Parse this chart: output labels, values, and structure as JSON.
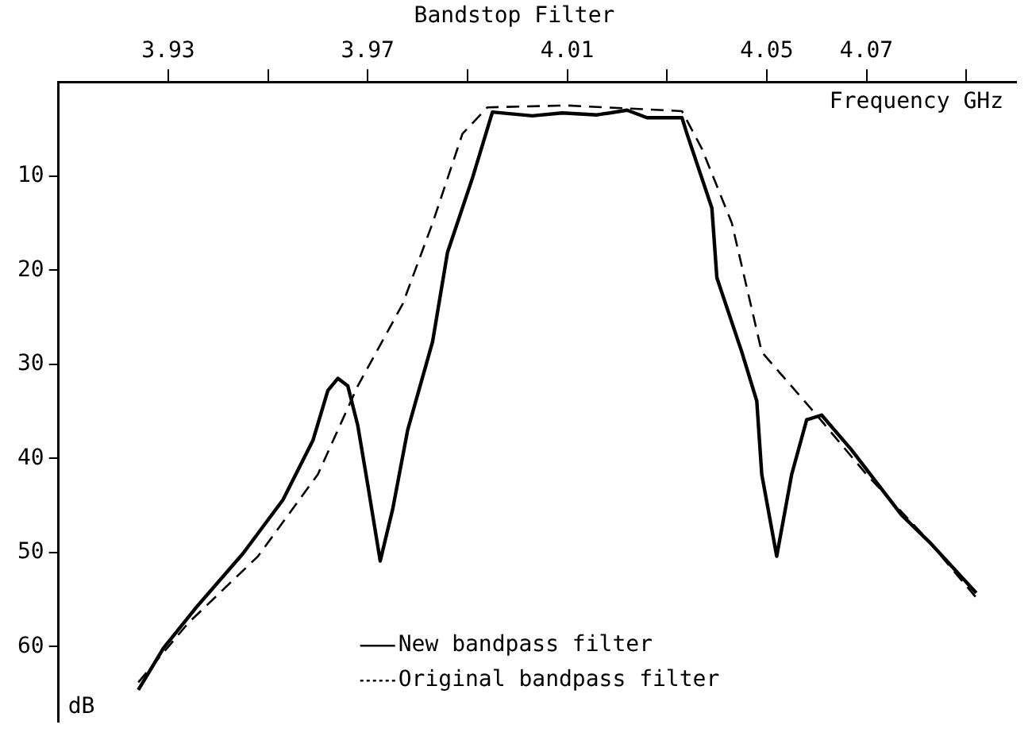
{
  "chart_data": {
    "type": "line",
    "title": "Bandstop Filter",
    "xlabel": "Frequency GHz",
    "ylabel": "dB",
    "xlim": [
      3.908,
      4.1
    ],
    "xticks": [
      {
        "value": 3.93,
        "label": "3.93"
      },
      {
        "value": 3.95,
        "label": null
      },
      {
        "value": 3.97,
        "label": "3.97"
      },
      {
        "value": 3.99,
        "label": null
      },
      {
        "value": 4.01,
        "label": "4.01"
      },
      {
        "value": 4.03,
        "label": null
      },
      {
        "value": 4.05,
        "label": "4.05"
      },
      {
        "value": 4.07,
        "label": "4.07"
      },
      {
        "value": 4.09,
        "label": null
      }
    ],
    "ylim": [
      68,
      0
    ],
    "yticks": [
      10,
      20,
      30,
      40,
      50,
      60
    ],
    "grid": false,
    "legend": "bottom",
    "marker": "none",
    "series": [
      {
        "name": "New bandpass filter",
        "color": "#000000",
        "line_style": "solid",
        "x": [
          3.924,
          3.929,
          3.9355,
          3.945,
          3.953,
          3.959,
          3.962,
          3.964,
          3.966,
          3.968,
          3.97,
          3.9725,
          3.975,
          3.978,
          3.983,
          3.986,
          3.991,
          3.995,
          4.003,
          4.009,
          4.016,
          4.022,
          4.026,
          4.033,
          4.034,
          4.039,
          4.04,
          4.045,
          4.048,
          4.049,
          4.052,
          4.055,
          4.058,
          4.061,
          4.067,
          4.077,
          4.083,
          4.092
        ],
        "values": [
          64.6,
          60.2,
          55.9,
          50.1,
          44.4,
          38.1,
          32.8,
          31.5,
          32.3,
          36.5,
          42.8,
          50.9,
          45.4,
          37,
          27.6,
          18.1,
          10.2,
          3.2,
          3.6,
          3.3,
          3.5,
          3,
          3.8,
          3.8,
          5.5,
          13.4,
          20.8,
          28.7,
          33.9,
          41.7,
          50.4,
          41.7,
          35.9,
          35.4,
          39.1,
          46,
          49.1,
          54.3
        ]
      },
      {
        "name": "Original bandpass filter",
        "color": "#000000",
        "line_style": "dashed",
        "x": [
          3.924,
          3.934,
          3.948,
          3.96,
          3.968,
          3.977,
          3.983,
          3.989,
          3.994,
          4.01,
          4.033,
          4.037,
          4.043,
          4.049,
          4.06,
          4.07,
          4.082,
          4.092
        ],
        "values": [
          63.8,
          57.5,
          50.4,
          41.7,
          32.3,
          23.6,
          15,
          5.5,
          2.7,
          2.5,
          3.1,
          7.1,
          15,
          28.7,
          35.4,
          41.7,
          48.5,
          54.8
        ]
      }
    ]
  }
}
